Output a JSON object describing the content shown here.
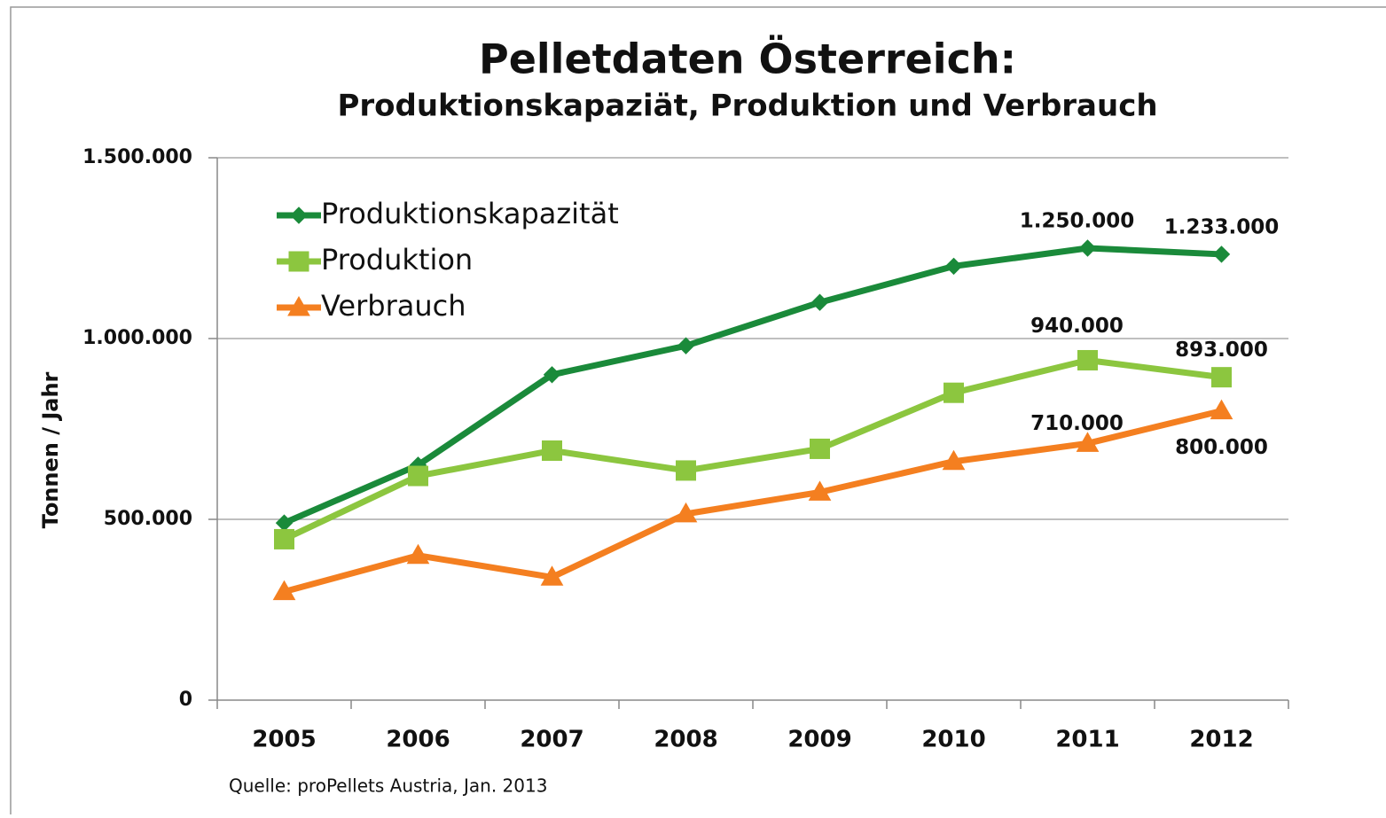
{
  "chart_data": {
    "type": "line",
    "title": "Pelletdaten Österreich:",
    "subtitle": "Produktionskapaziät, Produktion und Verbrauch",
    "y_label": "Tonnen / Jahr",
    "source": "Quelle: proPellets Austria, Jan. 2013",
    "categories": [
      "2005",
      "2006",
      "2007",
      "2008",
      "2009",
      "2010",
      "2011",
      "2012"
    ],
    "series": [
      {
        "name": "Produktionskapazität",
        "color": "#1a8a3a",
        "marker": "diamond",
        "values": [
          490000,
          650000,
          900000,
          980000,
          1100000,
          1200000,
          1250000,
          1233000
        ],
        "value_labels": [
          null,
          null,
          null,
          null,
          null,
          null,
          "1.250.000",
          "1.233.000"
        ]
      },
      {
        "name": "Produktion",
        "color": "#8cc63f",
        "marker": "square",
        "values": [
          445000,
          620000,
          690000,
          635000,
          695000,
          850000,
          940000,
          893000
        ],
        "value_labels": [
          null,
          null,
          null,
          null,
          null,
          null,
          "940.000",
          "893.000"
        ]
      },
      {
        "name": "Verbrauch",
        "color": "#f47f20",
        "marker": "triangle",
        "values": [
          300000,
          400000,
          340000,
          515000,
          575000,
          660000,
          710000,
          800000
        ],
        "value_labels": [
          null,
          null,
          null,
          null,
          null,
          null,
          "710.000",
          "800.000"
        ]
      }
    ],
    "ylim": [
      0,
      1500000
    ],
    "yticks": [
      0,
      {
        "value": 500000,
        "label": "500.000"
      },
      {
        "value": 1000000,
        "label": "1.000.000"
      },
      {
        "value": 1500000,
        "label": "1.500.000"
      }
    ],
    "grid": true,
    "legend": "top-left"
  }
}
